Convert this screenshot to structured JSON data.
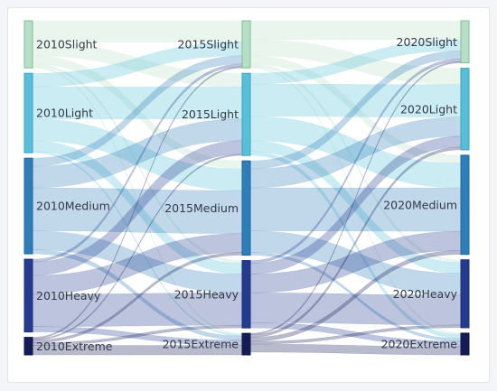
{
  "diagram": {
    "type": "sankey",
    "nodes": [
      {
        "id": "2010Slight",
        "label": "2010Slight",
        "color": "#b9dec7",
        "stroke": "#7dbf95"
      },
      {
        "id": "2010Light",
        "label": "2010Light",
        "color": "#57bfd8",
        "stroke": "#3aa5c0"
      },
      {
        "id": "2010Medium",
        "label": "2010Medium",
        "color": "#2e7eb8",
        "stroke": "#2066a0"
      },
      {
        "id": "2010Heavy",
        "label": "2010Heavy",
        "color": "#253b8f",
        "stroke": "#1c2e78"
      },
      {
        "id": "2010Extreme",
        "label": "2010Extreme",
        "color": "#141c58",
        "stroke": "#0f1545"
      },
      {
        "id": "2015Slight",
        "label": "2015Slight",
        "color": "#b9dec7",
        "stroke": "#7dbf95"
      },
      {
        "id": "2015Light",
        "label": "2015Light",
        "color": "#57bfd8",
        "stroke": "#3aa5c0"
      },
      {
        "id": "2015Medium",
        "label": "2015Medium",
        "color": "#2e7eb8",
        "stroke": "#2066a0"
      },
      {
        "id": "2015Heavy",
        "label": "2015Heavy",
        "color": "#253b8f",
        "stroke": "#1c2e78"
      },
      {
        "id": "2015Extreme",
        "label": "2015Extreme",
        "color": "#141c58",
        "stroke": "#0f1545"
      },
      {
        "id": "2020Slight",
        "label": "2020Slight",
        "color": "#b9dec7",
        "stroke": "#7dbf95"
      },
      {
        "id": "2020Light",
        "label": "2020Light",
        "color": "#57bfd8",
        "stroke": "#3aa5c0"
      },
      {
        "id": "2020Medium",
        "label": "2020Medium",
        "color": "#2e7eb8",
        "stroke": "#2066a0"
      },
      {
        "id": "2020Heavy",
        "label": "2020Heavy",
        "color": "#253b8f",
        "stroke": "#1c2e78"
      },
      {
        "id": "2020Extreme",
        "label": "2020Extreme",
        "color": "#141c58",
        "stroke": "#0f1545"
      }
    ],
    "links": [
      {
        "source": "2010Slight",
        "target": "2015Slight",
        "value": 8
      },
      {
        "source": "2010Slight",
        "target": "2015Light",
        "value": 5
      },
      {
        "source": "2010Slight",
        "target": "2015Medium",
        "value": 3
      },
      {
        "source": "2010Slight",
        "target": "2015Heavy",
        "value": 1
      },
      {
        "source": "2010Slight",
        "target": "2015Extreme",
        "value": 0.5
      },
      {
        "source": "2010Light",
        "target": "2015Slight",
        "value": 5
      },
      {
        "source": "2010Light",
        "target": "2015Light",
        "value": 12
      },
      {
        "source": "2010Light",
        "target": "2015Medium",
        "value": 8
      },
      {
        "source": "2010Light",
        "target": "2015Heavy",
        "value": 4
      },
      {
        "source": "2010Light",
        "target": "2015Extreme",
        "value": 0.5
      },
      {
        "source": "2010Medium",
        "target": "2015Slight",
        "value": 3
      },
      {
        "source": "2010Medium",
        "target": "2015Light",
        "value": 8
      },
      {
        "source": "2010Medium",
        "target": "2015Medium",
        "value": 16
      },
      {
        "source": "2010Medium",
        "target": "2015Heavy",
        "value": 7
      },
      {
        "source": "2010Medium",
        "target": "2015Extreme",
        "value": 1.5
      },
      {
        "source": "2010Heavy",
        "target": "2015Slight",
        "value": 1
      },
      {
        "source": "2010Heavy",
        "target": "2015Light",
        "value": 5
      },
      {
        "source": "2010Heavy",
        "target": "2015Medium",
        "value": 7
      },
      {
        "source": "2010Heavy",
        "target": "2015Heavy",
        "value": 12
      },
      {
        "source": "2010Heavy",
        "target": "2015Extreme",
        "value": 2
      },
      {
        "source": "2010Extreme",
        "target": "2015Slight",
        "value": 0.5
      },
      {
        "source": "2010Extreme",
        "target": "2015Light",
        "value": 0.5
      },
      {
        "source": "2010Extreme",
        "target": "2015Medium",
        "value": 1
      },
      {
        "source": "2010Extreme",
        "target": "2015Heavy",
        "value": 1
      },
      {
        "source": "2010Extreme",
        "target": "2015Extreme",
        "value": 3.5
      },
      {
        "source": "2015Slight",
        "target": "2020Slight",
        "value": 7
      },
      {
        "source": "2015Slight",
        "target": "2020Light",
        "value": 6
      },
      {
        "source": "2015Slight",
        "target": "2020Medium",
        "value": 3
      },
      {
        "source": "2015Slight",
        "target": "2020Heavy",
        "value": 1
      },
      {
        "source": "2015Slight",
        "target": "2020Extreme",
        "value": 0.5
      },
      {
        "source": "2015Light",
        "target": "2020Slight",
        "value": 4
      },
      {
        "source": "2015Light",
        "target": "2020Light",
        "value": 12
      },
      {
        "source": "2015Light",
        "target": "2020Medium",
        "value": 9
      },
      {
        "source": "2015Light",
        "target": "2020Heavy",
        "value": 4
      },
      {
        "source": "2015Light",
        "target": "2020Extreme",
        "value": 1.5
      },
      {
        "source": "2015Medium",
        "target": "2020Slight",
        "value": 3
      },
      {
        "source": "2015Medium",
        "target": "2020Light",
        "value": 7
      },
      {
        "source": "2015Medium",
        "target": "2020Medium",
        "value": 16
      },
      {
        "source": "2015Medium",
        "target": "2020Heavy",
        "value": 8
      },
      {
        "source": "2015Medium",
        "target": "2020Extreme",
        "value": 1
      },
      {
        "source": "2015Heavy",
        "target": "2020Slight",
        "value": 1
      },
      {
        "source": "2015Heavy",
        "target": "2020Light",
        "value": 4
      },
      {
        "source": "2015Heavy",
        "target": "2020Medium",
        "value": 7
      },
      {
        "source": "2015Heavy",
        "target": "2020Heavy",
        "value": 11
      },
      {
        "source": "2015Heavy",
        "target": "2020Extreme",
        "value": 2
      },
      {
        "source": "2015Extreme",
        "target": "2020Slight",
        "value": 0.5
      },
      {
        "source": "2015Extreme",
        "target": "2020Light",
        "value": 1
      },
      {
        "source": "2015Extreme",
        "target": "2020Medium",
        "value": 1.5
      },
      {
        "source": "2015Extreme",
        "target": "2020Heavy",
        "value": 1
      },
      {
        "source": "2015Extreme",
        "target": "2020Extreme",
        "value": 3
      }
    ],
    "link_opacity": 0.3
  }
}
